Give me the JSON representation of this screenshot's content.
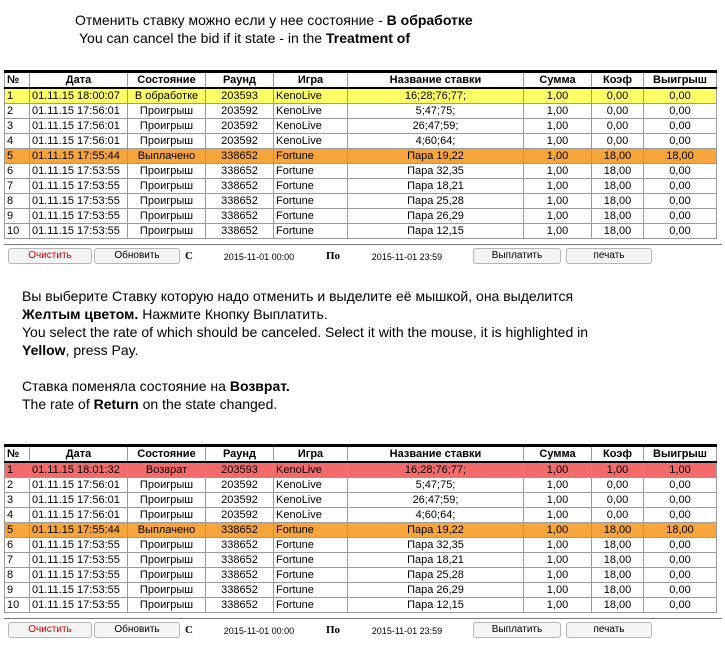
{
  "top_note": {
    "ru_prefix": "Отменить ставку можно если у нее состояние - ",
    "ru_bold": "В обработке",
    "en_prefix": "You can cancel the bid if it state - in the ",
    "en_bold": "Treatment of"
  },
  "mid_note": {
    "line1_prefix": "Вы выберите Ставку которую надо отменить и выделите её мышкой, она выделится",
    "line2_bold": "Желтым цветом.",
    "line2_rest": " Нажмите Кнопку Выплатить.",
    "line3": "You select the rate of which should be canceled. Select it with the mouse, it is highlighted in",
    "line4_bold": "Yellow",
    "line4_rest": ", press Pay.",
    "line5_prefix": "Ставка поменяла состояние на ",
    "line5_bold": "Возврат.",
    "line6_prefix": "The rate of ",
    "line6_bold": "Return",
    "line6_rest": " on the state changed."
  },
  "headers": [
    "№",
    "Дата",
    "Состояние",
    "Раунд",
    "Игра",
    "Название ставки",
    "Сумма",
    "Коэф",
    "Выигрыш"
  ],
  "table1": [
    {
      "n": "1",
      "date": "01.11.15 18:00:07",
      "state": "В обработке",
      "round": "203593",
      "game": "KenoLive",
      "name": "16;28;76;77;",
      "sum": "1,00",
      "coef": "0,00",
      "win": "0,00",
      "hl": "yellow"
    },
    {
      "n": "2",
      "date": "01.11.15 17:56:01",
      "state": "Проигрыш",
      "round": "203592",
      "game": "KenoLive",
      "name": "5;47;75;",
      "sum": "1,00",
      "coef": "0,00",
      "win": "0,00",
      "hl": ""
    },
    {
      "n": "3",
      "date": "01.11.15 17:56:01",
      "state": "Проигрыш",
      "round": "203592",
      "game": "KenoLive",
      "name": "26;47;59;",
      "sum": "1,00",
      "coef": "0,00",
      "win": "0,00",
      "hl": ""
    },
    {
      "n": "4",
      "date": "01.11.15 17:56:01",
      "state": "Проигрыш",
      "round": "203592",
      "game": "KenoLive",
      "name": "4;60;64;",
      "sum": "1,00",
      "coef": "0,00",
      "win": "0,00",
      "hl": ""
    },
    {
      "n": "5",
      "date": "01.11.15 17:55:44",
      "state": "Выплачено",
      "round": "338652",
      "game": "Fortune",
      "name": "Пара 19,22",
      "sum": "1,00",
      "coef": "18,00",
      "win": "18,00",
      "hl": "orange"
    },
    {
      "n": "6",
      "date": "01.11.15 17:53:55",
      "state": "Проигрыш",
      "round": "338652",
      "game": "Fortune",
      "name": "Пара 32,35",
      "sum": "1,00",
      "coef": "18,00",
      "win": "0,00",
      "hl": ""
    },
    {
      "n": "7",
      "date": "01.11.15 17:53:55",
      "state": "Проигрыш",
      "round": "338652",
      "game": "Fortune",
      "name": "Пара 18,21",
      "sum": "1,00",
      "coef": "18,00",
      "win": "0,00",
      "hl": ""
    },
    {
      "n": "8",
      "date": "01.11.15 17:53:55",
      "state": "Проигрыш",
      "round": "338652",
      "game": "Fortune",
      "name": "Пара 25,28",
      "sum": "1,00",
      "coef": "18,00",
      "win": "0,00",
      "hl": ""
    },
    {
      "n": "9",
      "date": "01.11.15 17:53:55",
      "state": "Проигрыш",
      "round": "338652",
      "game": "Fortune",
      "name": "Пара 26,29",
      "sum": "1,00",
      "coef": "18,00",
      "win": "0,00",
      "hl": ""
    },
    {
      "n": "10",
      "date": "01.11.15 17:53:55",
      "state": "Проигрыш",
      "round": "338652",
      "game": "Fortune",
      "name": "Пара 12,15",
      "sum": "1,00",
      "coef": "18,00",
      "win": "0,00",
      "hl": ""
    }
  ],
  "table2": [
    {
      "n": "1",
      "date": "01.11.15 18:01:32",
      "state": "Возврат",
      "round": "203593",
      "game": "KenoLive",
      "name": "16;28;76;77;",
      "sum": "1,00",
      "coef": "1,00",
      "win": "1,00",
      "hl": "red"
    },
    {
      "n": "2",
      "date": "01.11.15 17:56:01",
      "state": "Проигрыш",
      "round": "203592",
      "game": "KenoLive",
      "name": "5;47;75;",
      "sum": "1,00",
      "coef": "0,00",
      "win": "0,00",
      "hl": ""
    },
    {
      "n": "3",
      "date": "01.11.15 17:56:01",
      "state": "Проигрыш",
      "round": "203592",
      "game": "KenoLive",
      "name": "26;47;59;",
      "sum": "1,00",
      "coef": "0,00",
      "win": "0,00",
      "hl": ""
    },
    {
      "n": "4",
      "date": "01.11.15 17:56:01",
      "state": "Проигрыш",
      "round": "203592",
      "game": "KenoLive",
      "name": "4;60;64;",
      "sum": "1,00",
      "coef": "0,00",
      "win": "0,00",
      "hl": ""
    },
    {
      "n": "5",
      "date": "01.11.15 17:55:44",
      "state": "Выплачено",
      "round": "338652",
      "game": "Fortune",
      "name": "Пара 19,22",
      "sum": "1,00",
      "coef": "18,00",
      "win": "18,00",
      "hl": "orange"
    },
    {
      "n": "6",
      "date": "01.11.15 17:53:55",
      "state": "Проигрыш",
      "round": "338652",
      "game": "Fortune",
      "name": "Пара 32,35",
      "sum": "1,00",
      "coef": "18,00",
      "win": "0,00",
      "hl": ""
    },
    {
      "n": "7",
      "date": "01.11.15 17:53:55",
      "state": "Проигрыш",
      "round": "338652",
      "game": "Fortune",
      "name": "Пара 18,21",
      "sum": "1,00",
      "coef": "18,00",
      "win": "0,00",
      "hl": ""
    },
    {
      "n": "8",
      "date": "01.11.15 17:53:55",
      "state": "Проигрыш",
      "round": "338652",
      "game": "Fortune",
      "name": "Пара 25,28",
      "sum": "1,00",
      "coef": "18,00",
      "win": "0,00",
      "hl": ""
    },
    {
      "n": "9",
      "date": "01.11.15 17:53:55",
      "state": "Проигрыш",
      "round": "338652",
      "game": "Fortune",
      "name": "Пара 26,29",
      "sum": "1,00",
      "coef": "18,00",
      "win": "0,00",
      "hl": ""
    },
    {
      "n": "10",
      "date": "01.11.15 17:53:55",
      "state": "Проигрыш",
      "round": "338652",
      "game": "Fortune",
      "name": "Пара 12,15",
      "sum": "1,00",
      "coef": "18,00",
      "win": "0,00",
      "hl": ""
    }
  ],
  "toolbar": {
    "clear_label": "Очистить",
    "refresh_label": "Обновить",
    "from_label": "С",
    "from_date": "2015-11-01 00:00",
    "to_label": "По",
    "to_date": "2015-11-01 23:59",
    "pay_label": "Выплатить",
    "print_label": "печать"
  },
  "colors": {
    "yellow": "#ffff66",
    "orange": "#f7a53a",
    "red": "#f36a6a",
    "clear_text": "#d00000"
  }
}
